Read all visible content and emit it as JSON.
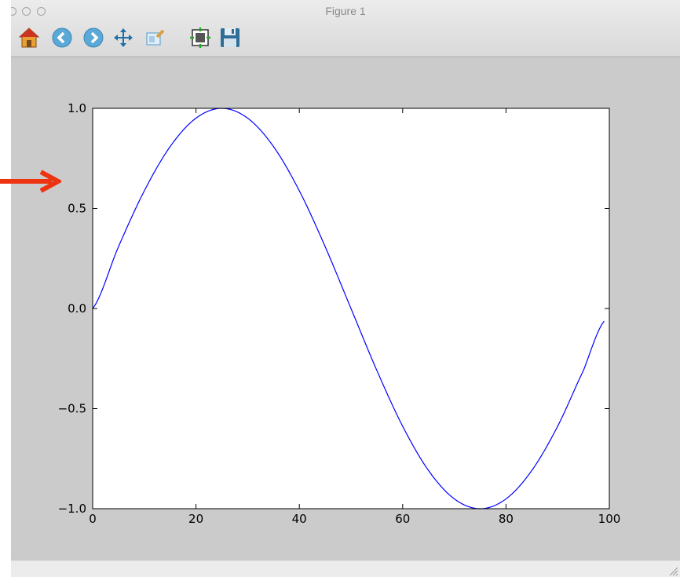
{
  "window": {
    "title": "Figure 1"
  },
  "toolbar": {
    "buttons": [
      {
        "name": "home-icon"
      },
      {
        "name": "back-arrow-icon"
      },
      {
        "name": "forward-arrow-icon"
      },
      {
        "name": "pan-move-icon"
      },
      {
        "name": "zoom-rectangle-icon"
      },
      {
        "name": "subplots-configure-icon"
      },
      {
        "name": "save-floppy-icon"
      }
    ]
  },
  "annotation": {
    "arrow_color": "#ee3311"
  },
  "chart_data": {
    "type": "line",
    "title": "",
    "xlabel": "",
    "ylabel": "",
    "xlim": [
      0,
      100
    ],
    "ylim": [
      -1.0,
      1.0
    ],
    "xticks": [
      0,
      20,
      40,
      60,
      80,
      100
    ],
    "xtick_labels": [
      "0",
      "20",
      "40",
      "60",
      "80",
      "100"
    ],
    "yticks": [
      -1.0,
      -0.5,
      0.0,
      0.5,
      1.0
    ],
    "ytick_labels": [
      "−1.0",
      "−0.5",
      "0.0",
      "0.5",
      "1.0"
    ],
    "grid": false,
    "series": [
      {
        "color": "#0000ff",
        "x": [
          0,
          5,
          10,
          15,
          20,
          25,
          30,
          35,
          40,
          45,
          50,
          55,
          60,
          65,
          70,
          75,
          80,
          85,
          90,
          95,
          99
        ],
        "y": [
          0.0,
          0.309,
          0.588,
          0.809,
          0.951,
          1.0,
          0.951,
          0.809,
          0.588,
          0.309,
          0.0,
          -0.309,
          -0.588,
          -0.809,
          -0.951,
          -1.0,
          -0.951,
          -0.809,
          -0.588,
          -0.309,
          -0.063
        ]
      }
    ]
  }
}
